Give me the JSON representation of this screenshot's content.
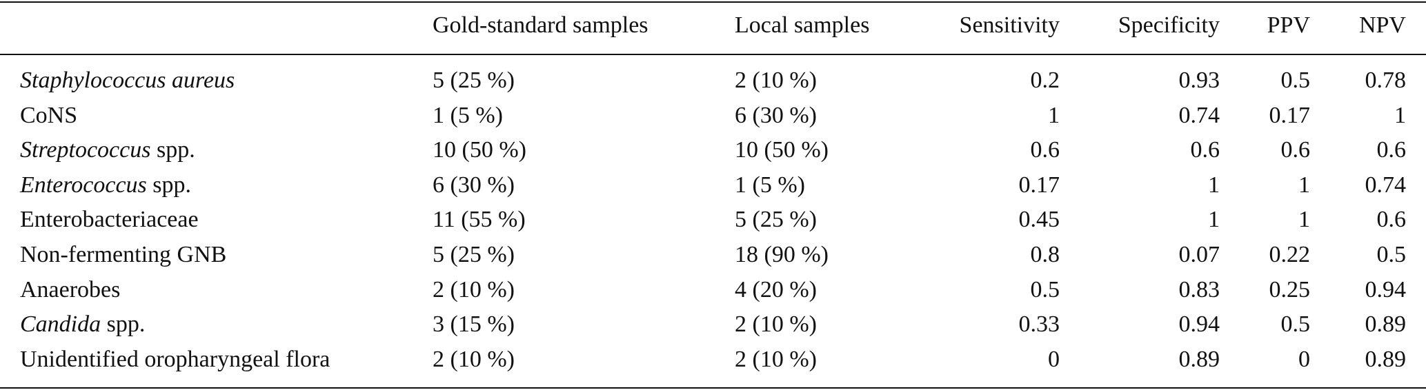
{
  "table": {
    "header": [
      "",
      "Gold-standard samples",
      "Local samples",
      "Sensitivity",
      "Specificity",
      "PPV",
      "NPV"
    ],
    "rows": [
      [
        [
          {
            "text": "Staphylococcus aureus",
            "italic": true
          }
        ],
        "5 (25 %)",
        "2 (10 %)",
        0.2,
        0.93,
        0.5,
        0.78
      ],
      [
        [
          {
            "text": "CoNS",
            "italic": false
          }
        ],
        "1 (5 %)",
        "6 (30 %)",
        1,
        0.74,
        0.17,
        1
      ],
      [
        [
          {
            "text": "Streptococcus",
            "italic": true
          },
          {
            "text": "spp.",
            "italic": false
          }
        ],
        "10 (50 %)",
        "10 (50 %)",
        0.6,
        0.6,
        0.6,
        0.6
      ],
      [
        [
          {
            "text": "Enterococcus",
            "italic": true
          },
          {
            "text": "spp.",
            "italic": false
          }
        ],
        "6 (30 %)",
        "1 (5 %)",
        0.17,
        1,
        1,
        0.74
      ],
      [
        [
          {
            "text": "Enterobacteriaceae",
            "italic": false
          }
        ],
        "11 (55 %)",
        "5 (25 %)",
        0.45,
        1,
        1,
        0.6
      ],
      [
        [
          {
            "text": "Non-fermenting GNB",
            "italic": false
          }
        ],
        "5 (25 %)",
        "18 (90 %)",
        0.8,
        0.07,
        0.22,
        0.5
      ],
      [
        [
          {
            "text": "Anaerobes",
            "italic": false
          }
        ],
        "2 (10 %)",
        "4 (20 %)",
        0.5,
        0.83,
        0.25,
        0.94
      ],
      [
        [
          {
            "text": "Candida",
            "italic": true
          },
          {
            "text": "spp.",
            "italic": false
          }
        ],
        "3 (15 %)",
        "2 (10 %)",
        0.33,
        0.94,
        0.5,
        0.89
      ],
      [
        [
          {
            "text": "Unidentified oropharyngeal flora",
            "italic": false
          }
        ],
        "2 (10 %)",
        "2 (10 %)",
        0,
        0.89,
        0,
        0.89
      ]
    ]
  }
}
